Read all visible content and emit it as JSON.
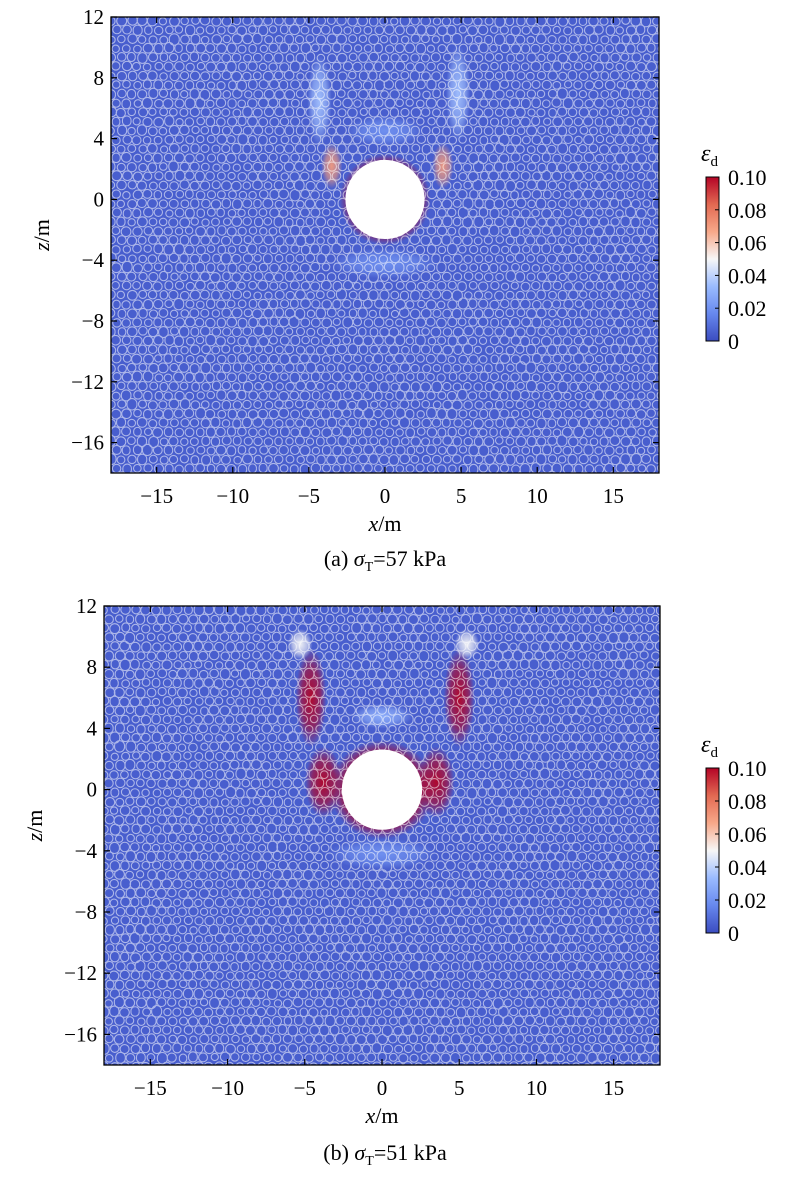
{
  "chart_data": [
    {
      "type": "heatmap",
      "panel_label": "(a)",
      "caption_symbol": "σ",
      "caption_subscript": "T",
      "caption_value": "=57 kPa",
      "xlabel": "x",
      "xlabel_unit": "/m",
      "ylabel": "z",
      "ylabel_unit": "/m",
      "xlim": [
        -18,
        18
      ],
      "ylim": [
        -18,
        12
      ],
      "xticks": [
        -15,
        -10,
        -5,
        0,
        5,
        10,
        15
      ],
      "yticks": [
        12,
        8,
        4,
        0,
        -4,
        -8,
        -12,
        -16
      ],
      "background_value": 0.005,
      "cavity": {
        "center_x": 0,
        "center_z": 0,
        "radius": 2.6
      },
      "colorbar": {
        "label": "ε",
        "label_subscript": "d",
        "min": 0,
        "max": 0.1,
        "ticks": [
          "0.10",
          "0.08",
          "0.06",
          "0.04",
          "0.02",
          "0"
        ],
        "colors": [
          "#3b4cc0",
          "#6788ee",
          "#9abbff",
          "#f7f7f7",
          "#f7a889",
          "#e26952",
          "#b40426"
        ]
      },
      "strain_zones": [
        {
          "x": 0,
          "z": 0,
          "sx": 3.0,
          "sz": 3.0,
          "ring": true,
          "value": 0.1
        },
        {
          "x": -3.5,
          "z": 2.2,
          "sx": 0.7,
          "sz": 1.5,
          "value": 0.07
        },
        {
          "x": 3.8,
          "z": 2.2,
          "sx": 0.7,
          "sz": 1.5,
          "value": 0.07
        },
        {
          "x": -4.3,
          "z": 6.5,
          "sx": 0.8,
          "sz": 3.0,
          "value": 0.035
        },
        {
          "x": 4.8,
          "z": 7.0,
          "sx": 0.8,
          "sz": 3.2,
          "value": 0.035
        },
        {
          "x": 0,
          "z": 4.5,
          "sx": 2.5,
          "sz": 1.0,
          "value": 0.02
        },
        {
          "x": 0,
          "z": -4.2,
          "sx": 3.5,
          "sz": 1.0,
          "value": 0.02
        }
      ]
    },
    {
      "type": "heatmap",
      "panel_label": "(b)",
      "caption_symbol": "σ",
      "caption_subscript": "T",
      "caption_value": "=51 kPa",
      "xlabel": "x",
      "xlabel_unit": "/m",
      "ylabel": "z",
      "ylabel_unit": "/m",
      "xlim": [
        -18,
        18
      ],
      "ylim": [
        -18,
        12
      ],
      "xticks": [
        -15,
        -10,
        -5,
        0,
        5,
        10,
        15
      ],
      "yticks": [
        12,
        8,
        4,
        0,
        -4,
        -8,
        -12,
        -16
      ],
      "background_value": 0.005,
      "cavity": {
        "center_x": 0,
        "center_z": 0,
        "radius": 2.6
      },
      "colorbar": {
        "label": "ε",
        "label_subscript": "d",
        "min": 0,
        "max": 0.1,
        "ticks": [
          "0.10",
          "0.08",
          "0.06",
          "0.04",
          "0.02",
          "0"
        ],
        "colors": [
          "#3b4cc0",
          "#6788ee",
          "#9abbff",
          "#f7f7f7",
          "#f7a889",
          "#e26952",
          "#b40426"
        ]
      },
      "strain_zones": [
        {
          "x": 0,
          "z": 0,
          "sx": 3.4,
          "sz": 3.2,
          "ring": true,
          "value": 0.1
        },
        {
          "x": -3.8,
          "z": 0.5,
          "sx": 1.2,
          "sz": 2.3,
          "value": 0.1
        },
        {
          "x": 3.5,
          "z": 0.5,
          "sx": 1.2,
          "sz": 2.3,
          "value": 0.1
        },
        {
          "x": -4.6,
          "z": 6.0,
          "sx": 1.0,
          "sz": 3.2,
          "value": 0.1
        },
        {
          "x": 5.0,
          "z": 6.0,
          "sx": 1.0,
          "sz": 3.2,
          "value": 0.1
        },
        {
          "x": -5.3,
          "z": 9.5,
          "sx": 0.8,
          "sz": 1.0,
          "value": 0.05
        },
        {
          "x": 5.5,
          "z": 9.5,
          "sx": 0.8,
          "sz": 1.0,
          "value": 0.05
        },
        {
          "x": 0,
          "z": 4.8,
          "sx": 2.0,
          "sz": 0.8,
          "value": 0.03
        },
        {
          "x": 0,
          "z": -4.2,
          "sx": 3.5,
          "sz": 1.0,
          "value": 0.02
        }
      ]
    }
  ]
}
